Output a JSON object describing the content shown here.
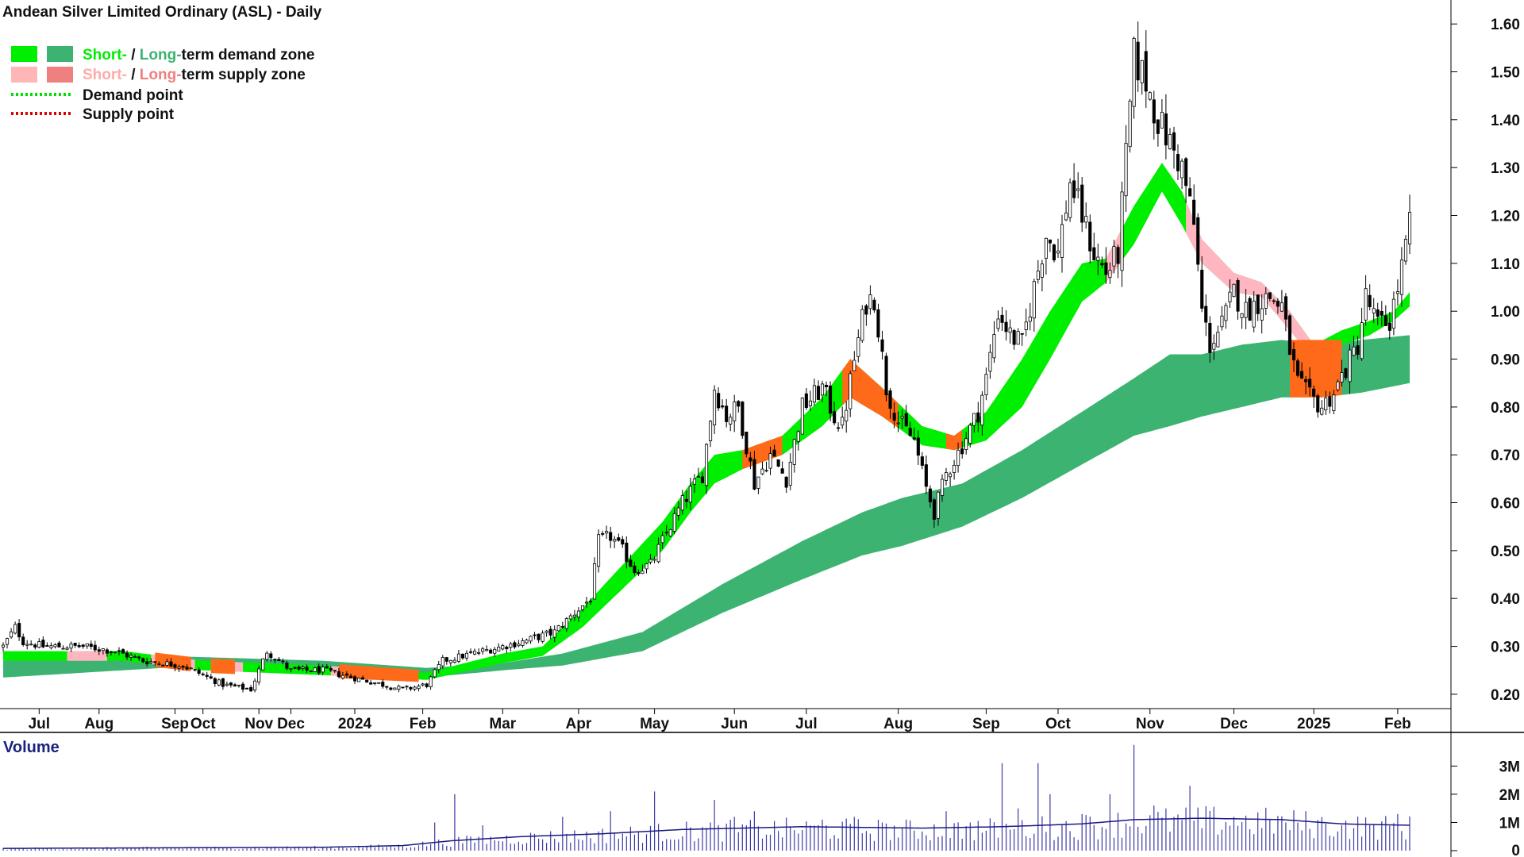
{
  "chart_data": {
    "type": "candlestick",
    "title": "Andean Silver Limited Ordinary (ASL) - Daily",
    "legend": {
      "placement": "top-left",
      "entries": [
        {
          "prefix": "Short-",
          "sep": " / ",
          "mid": "Long-",
          "suffix": "term demand zone",
          "short_color": "#00ee00",
          "long_color": "#3cb371",
          "kind": "box"
        },
        {
          "prefix": "Short-",
          "sep": " / ",
          "mid": "Long-",
          "suffix": "term supply zone",
          "short_color": "#ffb6b6",
          "long_color": "#f08080",
          "kind": "box"
        },
        {
          "label": "Demand point",
          "color": "#00dd00",
          "kind": "dots"
        },
        {
          "label": "Supply point",
          "color": "#dd0000",
          "kind": "dots"
        }
      ]
    },
    "y_axis": {
      "min": 0.17,
      "max": 1.65,
      "ticks": [
        "0.20",
        "0.30",
        "0.40",
        "0.50",
        "0.60",
        "0.70",
        "0.80",
        "0.90",
        "1.00",
        "1.10",
        "1.20",
        "1.30",
        "1.40",
        "1.50",
        "1.60"
      ],
      "position": "right"
    },
    "x_labels": [
      {
        "label": "Jul",
        "idx": 9
      },
      {
        "label": "Aug",
        "idx": 24
      },
      {
        "label": "Sep",
        "idx": 43
      },
      {
        "label": "Oct",
        "idx": 50
      },
      {
        "label": "Nov",
        "idx": 64
      },
      {
        "label": "Dec",
        "idx": 72
      },
      {
        "label": "2024",
        "idx": 88
      },
      {
        "label": "Feb",
        "idx": 105
      },
      {
        "label": "Mar",
        "idx": 125
      },
      {
        "label": "Apr",
        "idx": 144
      },
      {
        "label": "May",
        "idx": 163
      },
      {
        "label": "Jun",
        "idx": 183
      },
      {
        "label": "Jul",
        "idx": 201
      },
      {
        "label": "Aug",
        "idx": 224
      },
      {
        "label": "Sep",
        "idx": 246
      },
      {
        "label": "Oct",
        "idx": 264
      },
      {
        "label": "Nov",
        "idx": 287
      },
      {
        "label": "Dec",
        "idx": 308
      },
      {
        "label": "2025",
        "idx": 328
      },
      {
        "label": "Feb",
        "idx": 349
      }
    ],
    "bars": 353,
    "close_keypoints": [
      [
        0,
        0.3
      ],
      [
        3,
        0.34
      ],
      [
        5,
        0.31
      ],
      [
        10,
        0.3
      ],
      [
        20,
        0.3
      ],
      [
        28,
        0.29
      ],
      [
        35,
        0.27
      ],
      [
        45,
        0.26
      ],
      [
        55,
        0.22
      ],
      [
        62,
        0.21
      ],
      [
        66,
        0.29
      ],
      [
        72,
        0.25
      ],
      [
        80,
        0.25
      ],
      [
        90,
        0.23
      ],
      [
        100,
        0.21
      ],
      [
        106,
        0.22
      ],
      [
        110,
        0.27
      ],
      [
        120,
        0.29
      ],
      [
        130,
        0.31
      ],
      [
        138,
        0.33
      ],
      [
        143,
        0.37
      ],
      [
        147,
        0.4
      ],
      [
        149,
        0.52
      ],
      [
        152,
        0.53
      ],
      [
        155,
        0.5
      ],
      [
        158,
        0.46
      ],
      [
        162,
        0.47
      ],
      [
        165,
        0.52
      ],
      [
        170,
        0.6
      ],
      [
        175,
        0.66
      ],
      [
        178,
        0.84
      ],
      [
        181,
        0.78
      ],
      [
        184,
        0.8
      ],
      [
        188,
        0.64
      ],
      [
        192,
        0.7
      ],
      [
        196,
        0.65
      ],
      [
        200,
        0.8
      ],
      [
        205,
        0.84
      ],
      [
        208,
        0.78
      ],
      [
        210,
        0.76
      ],
      [
        213,
        0.9
      ],
      [
        216,
        1.02
      ],
      [
        218,
        1.03
      ],
      [
        221,
        0.84
      ],
      [
        224,
        0.77
      ],
      [
        228,
        0.73
      ],
      [
        231,
        0.63
      ],
      [
        233,
        0.58
      ],
      [
        236,
        0.66
      ],
      [
        240,
        0.72
      ],
      [
        244,
        0.79
      ],
      [
        246,
        0.86
      ],
      [
        249,
        1.0
      ],
      [
        252,
        0.95
      ],
      [
        255,
        0.93
      ],
      [
        258,
        1.05
      ],
      [
        261,
        1.16
      ],
      [
        264,
        1.12
      ],
      [
        267,
        1.27
      ],
      [
        270,
        1.2
      ],
      [
        273,
        1.12
      ],
      [
        276,
        1.08
      ],
      [
        279,
        1.12
      ],
      [
        281,
        1.32
      ],
      [
        283,
        1.53
      ],
      [
        286,
        1.48
      ],
      [
        289,
        1.4
      ],
      [
        292,
        1.35
      ],
      [
        295,
        1.3
      ],
      [
        298,
        1.18
      ],
      [
        300,
        1.0
      ],
      [
        302,
        0.93
      ],
      [
        305,
        0.97
      ],
      [
        308,
        1.04
      ],
      [
        311,
        1.0
      ],
      [
        314,
        1.02
      ],
      [
        317,
        1.03
      ],
      [
        320,
        1.01
      ],
      [
        322,
        0.92
      ],
      [
        324,
        0.85
      ],
      [
        327,
        0.82
      ],
      [
        330,
        0.8
      ],
      [
        333,
        0.83
      ],
      [
        336,
        0.88
      ],
      [
        339,
        0.93
      ],
      [
        341,
        1.03
      ],
      [
        344,
        0.97
      ],
      [
        347,
        0.98
      ],
      [
        349,
        1.05
      ],
      [
        351,
        1.13
      ],
      [
        352,
        1.18
      ]
    ],
    "short_term_zone_keypoints": [
      [
        0,
        0.27,
        0.29
      ],
      [
        30,
        0.27,
        0.29
      ],
      [
        50,
        0.25,
        0.27
      ],
      [
        80,
        0.24,
        0.26
      ],
      [
        106,
        0.23,
        0.245
      ],
      [
        125,
        0.265,
        0.285
      ],
      [
        135,
        0.28,
        0.3
      ],
      [
        145,
        0.34,
        0.38
      ],
      [
        155,
        0.42,
        0.47
      ],
      [
        165,
        0.5,
        0.56
      ],
      [
        172,
        0.58,
        0.64
      ],
      [
        178,
        0.64,
        0.7
      ],
      [
        185,
        0.67,
        0.71
      ],
      [
        195,
        0.7,
        0.74
      ],
      [
        205,
        0.76,
        0.82
      ],
      [
        212,
        0.82,
        0.9
      ],
      [
        220,
        0.78,
        0.84
      ],
      [
        230,
        0.72,
        0.76
      ],
      [
        238,
        0.71,
        0.74
      ],
      [
        246,
        0.73,
        0.79
      ],
      [
        255,
        0.8,
        0.9
      ],
      [
        262,
        0.9,
        1.0
      ],
      [
        270,
        1.02,
        1.1
      ],
      [
        276,
        1.06,
        1.11
      ],
      [
        283,
        1.14,
        1.22
      ],
      [
        290,
        1.25,
        1.31
      ],
      [
        295,
        1.18,
        1.25
      ],
      [
        300,
        1.1,
        1.15
      ],
      [
        308,
        1.04,
        1.08
      ],
      [
        315,
        1.03,
        1.06
      ],
      [
        322,
        0.96,
        1.0
      ],
      [
        328,
        0.9,
        0.93
      ],
      [
        335,
        0.93,
        0.96
      ],
      [
        342,
        0.95,
        0.98
      ],
      [
        348,
        0.98,
        1.0
      ],
      [
        352,
        1.01,
        1.04
      ]
    ],
    "long_term_zone_keypoints": [
      [
        0,
        0.235,
        0.27
      ],
      [
        40,
        0.255,
        0.28
      ],
      [
        80,
        0.245,
        0.27
      ],
      [
        106,
        0.235,
        0.255
      ],
      [
        125,
        0.25,
        0.265
      ],
      [
        140,
        0.26,
        0.285
      ],
      [
        160,
        0.29,
        0.33
      ],
      [
        180,
        0.37,
        0.43
      ],
      [
        200,
        0.44,
        0.52
      ],
      [
        215,
        0.49,
        0.58
      ],
      [
        225,
        0.51,
        0.61
      ],
      [
        240,
        0.55,
        0.64
      ],
      [
        255,
        0.61,
        0.71
      ],
      [
        270,
        0.68,
        0.79
      ],
      [
        283,
        0.74,
        0.86
      ],
      [
        292,
        0.76,
        0.91
      ],
      [
        300,
        0.78,
        0.91
      ],
      [
        310,
        0.8,
        0.93
      ],
      [
        320,
        0.82,
        0.94
      ],
      [
        330,
        0.82,
        0.93
      ],
      [
        340,
        0.83,
        0.94
      ],
      [
        352,
        0.85,
        0.95
      ]
    ],
    "supply_segments": [
      [
        16,
        26
      ],
      [
        37,
        48
      ],
      [
        52,
        60
      ],
      [
        82,
        104
      ],
      [
        185,
        195
      ],
      [
        210,
        224
      ],
      [
        236,
        240
      ],
      [
        276,
        280
      ],
      [
        296,
        330
      ]
    ],
    "volume": {
      "title": "Volume",
      "y_ticks": [
        "0",
        "1M",
        "2M",
        "3M"
      ],
      "y_max_m": 3.2,
      "baseline_keypoints": [
        [
          0,
          0.08
        ],
        [
          40,
          0.1
        ],
        [
          80,
          0.12
        ],
        [
          100,
          0.18
        ],
        [
          112,
          0.35
        ],
        [
          130,
          0.5
        ],
        [
          150,
          0.6
        ],
        [
          170,
          0.75
        ],
        [
          200,
          0.85
        ],
        [
          230,
          0.8
        ],
        [
          250,
          0.85
        ],
        [
          270,
          0.95
        ],
        [
          283,
          1.1
        ],
        [
          300,
          1.15
        ],
        [
          320,
          1.1
        ],
        [
          335,
          0.95
        ],
        [
          352,
          0.9
        ]
      ],
      "spikes": [
        [
          108,
          1.0
        ],
        [
          113,
          2.0
        ],
        [
          120,
          0.9
        ],
        [
          140,
          1.2
        ],
        [
          152,
          1.4
        ],
        [
          163,
          2.1
        ],
        [
          178,
          1.8
        ],
        [
          183,
          1.2
        ],
        [
          188,
          1.4
        ],
        [
          205,
          1.1
        ],
        [
          213,
          1.2
        ],
        [
          220,
          1.0
        ],
        [
          236,
          1.4
        ],
        [
          242,
          1.0
        ],
        [
          250,
          3.1
        ],
        [
          254,
          1.5
        ],
        [
          259,
          3.1
        ],
        [
          262,
          2.0
        ],
        [
          270,
          1.3
        ],
        [
          277,
          2.0
        ],
        [
          283,
          3.75
        ],
        [
          288,
          1.6
        ],
        [
          297,
          2.3
        ],
        [
          308,
          1.2
        ],
        [
          321,
          1.0
        ],
        [
          335,
          0.9
        ],
        [
          342,
          0.9
        ],
        [
          349,
          1.3
        ]
      ]
    },
    "colors": {
      "short_demand": "#00ee00",
      "long_demand": "#3cb371",
      "short_supply": "#ffb6c1",
      "long_supply": "#f08080",
      "supply_overlap": "#ff6a1a",
      "volume": "#3a3aa8"
    }
  }
}
